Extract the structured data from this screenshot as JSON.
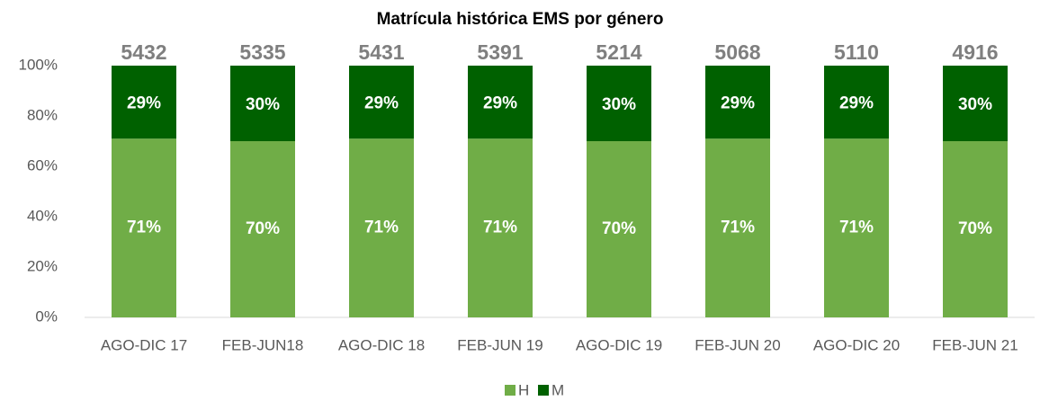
{
  "chart_data": {
    "type": "stacked_bar_100",
    "title": "Matrícula histórica EMS por género",
    "categories": [
      "AGO-DIC 17",
      "FEB-JUN18",
      "AGO-DIC 18",
      "FEB-JUN 19",
      "AGO-DIC 19",
      "FEB-JUN 20",
      "AGO-DIC 20",
      "FEB-JUN 21"
    ],
    "totals": [
      5432,
      5335,
      5431,
      5391,
      5214,
      5068,
      5110,
      4916
    ],
    "series": [
      {
        "name": "H",
        "color": "#70ad47",
        "values": [
          71,
          70,
          71,
          71,
          70,
          71,
          71,
          70
        ],
        "value_labels": [
          "71%",
          "70%",
          "71%",
          "71%",
          "70%",
          "71%",
          "71%",
          "70%"
        ]
      },
      {
        "name": "M",
        "color": "#006100",
        "values": [
          29,
          30,
          29,
          29,
          30,
          29,
          29,
          30
        ],
        "value_labels": [
          "29%",
          "30%",
          "29%",
          "29%",
          "30%",
          "29%",
          "29%",
          "30%"
        ]
      }
    ],
    "ylim": [
      0,
      100
    ],
    "yticks": [
      {
        "value": 0,
        "label": "0%"
      },
      {
        "value": 20,
        "label": "20%"
      },
      {
        "value": 40,
        "label": "40%"
      },
      {
        "value": 60,
        "label": "60%"
      },
      {
        "value": 80,
        "label": "80%"
      },
      {
        "value": 100,
        "label": "100%"
      }
    ],
    "legend": "bottom"
  }
}
